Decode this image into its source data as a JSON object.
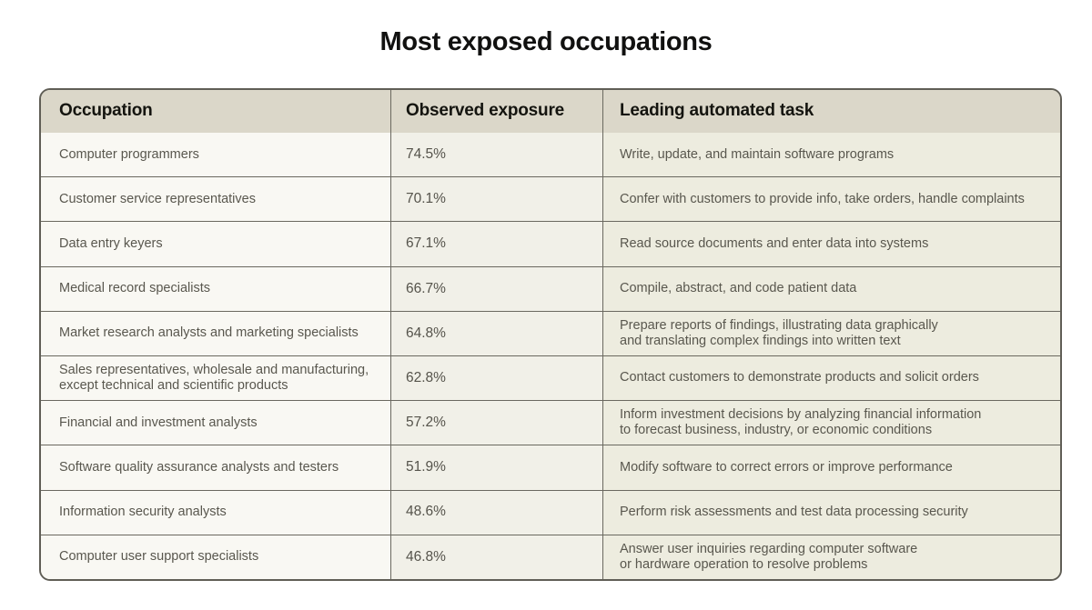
{
  "page": {
    "title": "Most exposed occupations"
  },
  "colors": {
    "header_bg": "#dbd7c9",
    "occupation_col_bg": "#f9f8f3",
    "exposure_col_bg": "#f1f0e8",
    "task_col_bg": "#edecdf",
    "border": "#605e56",
    "title_text": "#111110",
    "cell_text": "#59574e"
  },
  "table": {
    "columns": [
      "Occupation",
      "Observed exposure",
      "Leading automated task"
    ],
    "rows": [
      {
        "occupation": "Computer programmers",
        "exposure": "74.5%",
        "task": "Write, update, and maintain software programs"
      },
      {
        "occupation": "Customer service representatives",
        "exposure": "70.1%",
        "task": "Confer with customers to provide info, take orders, handle complaints"
      },
      {
        "occupation": "Data entry keyers",
        "exposure": "67.1%",
        "task": "Read source documents and enter data into systems"
      },
      {
        "occupation": "Medical record specialists",
        "exposure": "66.7%",
        "task": "Compile, abstract, and code patient data"
      },
      {
        "occupation": "Market research analysts and marketing specialists",
        "exposure": "64.8%",
        "task": "Prepare reports of findings, illustrating data graphically\nand translating complex findings into written text"
      },
      {
        "occupation": "Sales representatives, wholesale and manufacturing,\nexcept technical and scientific products",
        "exposure": "62.8%",
        "task": "Contact customers to demonstrate products and solicit orders"
      },
      {
        "occupation": "Financial and investment analysts",
        "exposure": "57.2%",
        "task": "Inform investment decisions by analyzing financial information\nto forecast business, industry, or economic conditions"
      },
      {
        "occupation": "Software quality assurance analysts and testers",
        "exposure": "51.9%",
        "task": "Modify software to correct errors or improve performance"
      },
      {
        "occupation": "Information security analysts",
        "exposure": "48.6%",
        "task": "Perform risk assessments and test data processing security"
      },
      {
        "occupation": "Computer user support specialists",
        "exposure": "46.8%",
        "task": "Answer user inquiries regarding computer software\nor hardware operation to resolve problems"
      }
    ]
  }
}
